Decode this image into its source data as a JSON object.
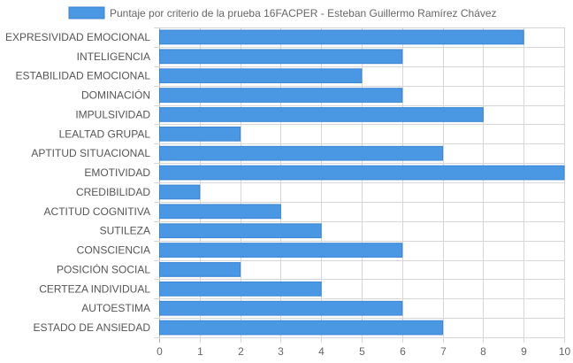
{
  "chart_data": {
    "type": "bar",
    "orientation": "horizontal",
    "title": "",
    "legend_position": "top-center",
    "series": [
      {
        "name": "Puntaje por criterio de la prueba 16FACPER - Esteban Guillermo Ramírez Chávez",
        "color": "#4a97e4",
        "values": [
          9,
          6,
          5,
          6,
          8,
          2,
          7,
          10,
          1,
          3,
          4,
          6,
          2,
          4,
          6,
          7
        ]
      }
    ],
    "categories": [
      "EXPRESIVIDAD EMOCIONAL",
      "INTELIGENCIA",
      "ESTABILIDAD EMOCIONAL",
      "DOMINACIÓN",
      "IMPULSIVIDAD",
      "LEALTAD GRUPAL",
      "APTITUD SITUACIONAL",
      "EMOTIVIDAD",
      "CREDIBILIDAD",
      "ACTITUD COGNITIVA",
      "SUTILEZA",
      "CONSCIENCIA",
      "POSICIÓN SOCIAL",
      "CERTEZA INDIVIDUAL",
      "AUTOESTIMA",
      "ESTADO DE ANSIEDAD"
    ],
    "xlim": [
      0,
      10
    ],
    "x_ticks": [
      "0",
      "1",
      "2",
      "3",
      "4",
      "5",
      "6",
      "7",
      "8",
      "9",
      "10"
    ],
    "grid": true
  }
}
